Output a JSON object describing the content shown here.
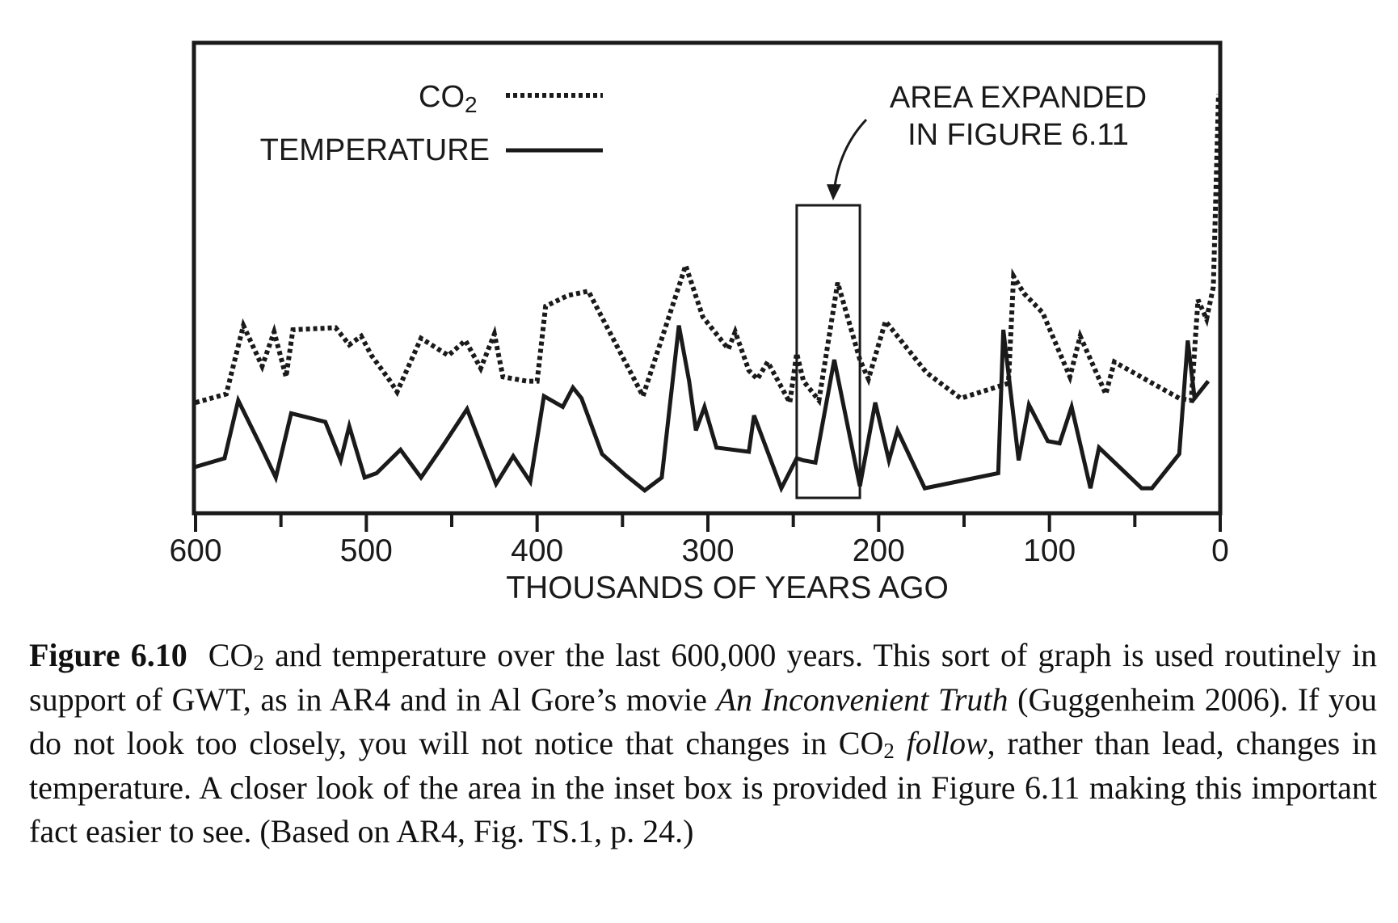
{
  "chart_data": {
    "type": "line",
    "xlabel": "THOUSANDS OF YEARS AGO",
    "ylabel": "",
    "title": "",
    "xlim": [
      600,
      0
    ],
    "x_reversed": true,
    "x_ticks": [
      "600",
      "500",
      "400",
      "300",
      "200",
      "100",
      "0"
    ],
    "grid": false,
    "legend": {
      "placement": "top-left",
      "entries": [
        {
          "base": "CO",
          "sub": "2",
          "style": "dotted"
        },
        {
          "text": "TEMPERATURE",
          "style": "solid"
        }
      ]
    },
    "annotation": {
      "line1": "AREA EXPANDED",
      "line2": "IN FIGURE 6.11",
      "box_x_range": [
        248,
        211
      ]
    },
    "series": [
      {
        "name": "CO2",
        "style": "dotted",
        "values_relative": true,
        "points": [
          [
            600,
            0.46
          ],
          [
            582,
            0.5
          ],
          [
            572,
            0.82
          ],
          [
            561,
            0.63
          ],
          [
            554,
            0.79
          ],
          [
            547,
            0.58
          ],
          [
            543,
            0.8
          ],
          [
            518,
            0.81
          ],
          [
            510,
            0.73
          ],
          [
            503,
            0.77
          ],
          [
            497,
            0.68
          ],
          [
            486,
            0.56
          ],
          [
            482,
            0.51
          ],
          [
            468,
            0.76
          ],
          [
            452,
            0.68
          ],
          [
            442,
            0.75
          ],
          [
            433,
            0.62
          ],
          [
            425,
            0.78
          ],
          [
            420,
            0.58
          ],
          [
            406,
            0.56
          ],
          [
            400,
            0.56
          ],
          [
            395,
            0.91
          ],
          [
            382,
            0.96
          ],
          [
            376,
            0.97
          ],
          [
            370,
            0.98
          ],
          [
            338,
            0.49
          ],
          [
            313,
            1.1
          ],
          [
            303,
            0.86
          ],
          [
            288,
            0.71
          ],
          [
            284,
            0.79
          ],
          [
            276,
            0.61
          ],
          [
            271,
            0.57
          ],
          [
            265,
            0.65
          ],
          [
            252,
            0.46
          ],
          [
            248,
            0.69
          ],
          [
            244,
            0.56
          ],
          [
            235,
            0.47
          ],
          [
            224,
            1.02
          ],
          [
            211,
            0.66
          ],
          [
            206,
            0.57
          ],
          [
            196,
            0.84
          ],
          [
            172,
            0.6
          ],
          [
            152,
            0.48
          ],
          [
            124,
            0.55
          ],
          [
            121,
            1.05
          ],
          [
            115,
            0.97
          ],
          [
            104,
            0.88
          ],
          [
            88,
            0.58
          ],
          [
            82,
            0.77
          ],
          [
            67,
            0.5
          ],
          [
            62,
            0.65
          ],
          [
            24,
            0.48
          ],
          [
            17,
            0.47
          ],
          [
            13,
            0.94
          ],
          [
            8,
            0.85
          ],
          [
            4,
            1.0
          ],
          [
            1,
            1.9
          ]
        ]
      },
      {
        "name": "TEMPERATURE",
        "style": "solid",
        "values_relative": true,
        "points": [
          [
            600,
            0.16
          ],
          [
            583,
            0.2
          ],
          [
            575,
            0.47
          ],
          [
            562,
            0.26
          ],
          [
            553,
            0.11
          ],
          [
            544,
            0.41
          ],
          [
            524,
            0.37
          ],
          [
            515,
            0.19
          ],
          [
            510,
            0.35
          ],
          [
            501,
            0.11
          ],
          [
            494,
            0.13
          ],
          [
            480,
            0.24
          ],
          [
            468,
            0.11
          ],
          [
            455,
            0.26
          ],
          [
            441,
            0.43
          ],
          [
            424,
            0.08
          ],
          [
            414,
            0.21
          ],
          [
            404,
            0.09
          ],
          [
            396,
            0.49
          ],
          [
            385,
            0.44
          ],
          [
            379,
            0.53
          ],
          [
            374,
            0.48
          ],
          [
            362,
            0.22
          ],
          [
            348,
            0.12
          ],
          [
            337,
            0.05
          ],
          [
            327,
            0.11
          ],
          [
            317,
            0.82
          ],
          [
            311,
            0.56
          ],
          [
            307,
            0.33
          ],
          [
            302,
            0.44
          ],
          [
            295,
            0.25
          ],
          [
            276,
            0.23
          ],
          [
            273,
            0.4
          ],
          [
            257,
            0.06
          ],
          [
            248,
            0.2
          ],
          [
            244,
            0.19
          ],
          [
            237,
            0.18
          ],
          [
            226,
            0.66
          ],
          [
            211,
            0.07
          ],
          [
            202,
            0.46
          ],
          [
            194,
            0.19
          ],
          [
            189,
            0.33
          ],
          [
            173,
            0.06
          ],
          [
            130,
            0.13
          ],
          [
            127,
            0.8
          ],
          [
            118,
            0.19
          ],
          [
            112,
            0.45
          ],
          [
            101,
            0.28
          ],
          [
            94,
            0.27
          ],
          [
            87,
            0.44
          ],
          [
            76,
            0.06
          ],
          [
            71,
            0.25
          ],
          [
            46,
            0.06
          ],
          [
            40,
            0.06
          ],
          [
            24,
            0.22
          ],
          [
            19,
            0.75
          ],
          [
            15,
            0.48
          ],
          [
            7,
            0.56
          ]
        ]
      }
    ]
  },
  "caption": {
    "label": "Figure 6.10",
    "s1": "CO",
    "s1_sub": "2",
    "s2": " and temperature over the last 600,000 years. This sort of graph is used routinely in support of GWT, as in AR4 and in Al Gore’s movie ",
    "s3_italic": "An Inconvenient Truth",
    "s4": " (Guggenheim 2006). If you do not look too closely, you will not notice that changes in CO",
    "s4_sub": "2",
    "s5_italic": "follow",
    "s6": ", rather than lead, changes in temperature. A closer look of the area in the inset box is provided in Figure 6.11 making this important fact easier to see. (Based on AR4, Fig. TS.1, p. 24.)"
  }
}
